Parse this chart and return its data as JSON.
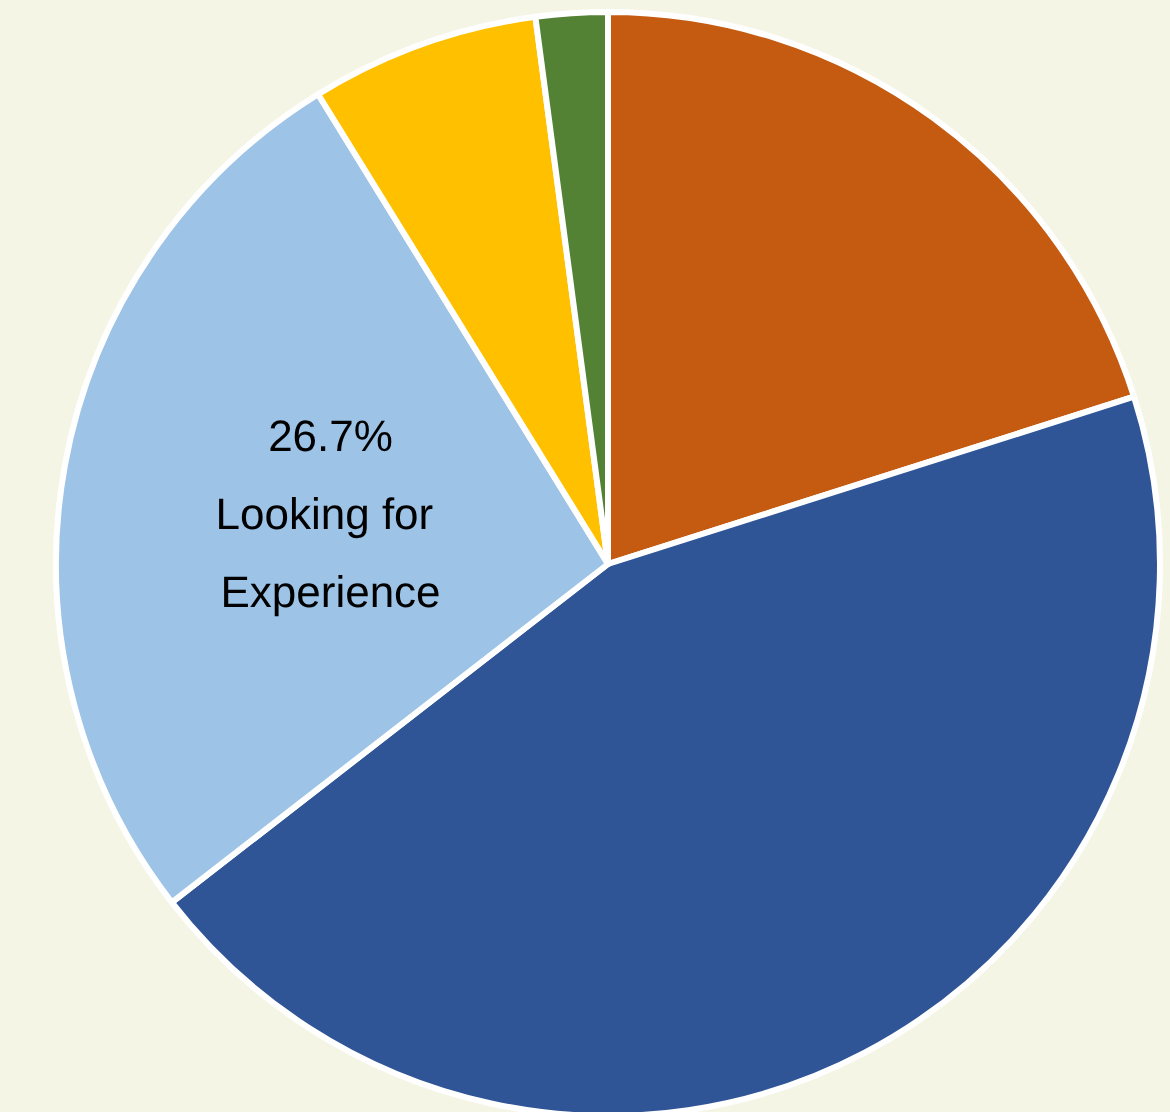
{
  "chart_data": {
    "type": "pie",
    "categories": [
      null,
      null,
      "Looking for Experience",
      null,
      null
    ],
    "values": [
      20.1,
      44.4,
      26.7,
      6.7,
      2.1
    ],
    "value_labels": [
      null,
      null,
      "26.7%",
      null,
      null
    ],
    "colors": [
      "#c55a11",
      "#2f5597",
      "#9dc3e6",
      "#ffc000",
      "#548235"
    ],
    "legend": false
  }
}
